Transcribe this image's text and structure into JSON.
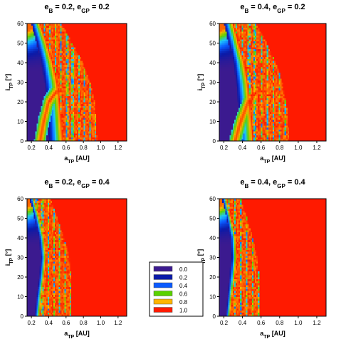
{
  "colors": {
    "red": "#ff1a00",
    "purple": "#3b1a8f",
    "levels": [
      "#3b1a8f",
      "#0a1aa8",
      "#0a5aff",
      "#1ec8ff",
      "#5ad200",
      "#ffb400",
      "#ff1a00"
    ]
  },
  "legend": {
    "position": "center",
    "labels": [
      "0.0",
      "0.2",
      "0.4",
      "0.6",
      "0.8",
      "1.0"
    ],
    "colors": [
      "#3b1a8f",
      "#0a1aa8",
      "#0a5aff",
      "#5ad200",
      "#ffb400",
      "#ff1a00"
    ]
  },
  "chart_data": [
    {
      "type": "heatmap",
      "title": {
        "main": "e",
        "s1": "B",
        "m1": " = 0.2, e",
        "s2": "GP",
        "m2": " = 0.2"
      },
      "xlabel": {
        "main": "a",
        "sub": "TP",
        "unit": " [AU]"
      },
      "ylabel": {
        "main": "i",
        "sub": "TP",
        "unit": " [°]"
      },
      "xlim": [
        0.15,
        1.3
      ],
      "ylim": [
        0,
        60
      ],
      "xticks": [
        "0.2",
        "0.4",
        "0.6",
        "0.8",
        "1.0",
        "1.2"
      ],
      "yticks": [
        "0",
        "10",
        "20",
        "30",
        "40",
        "50",
        "60"
      ],
      "stable_edge": [
        [
          0,
          0.4
        ],
        [
          10,
          0.39
        ],
        [
          20,
          0.38
        ],
        [
          30,
          0.35
        ],
        [
          40,
          0.31
        ],
        [
          50,
          0.26
        ],
        [
          60,
          0.2
        ]
      ],
      "unstable_edge": [
        [
          0,
          0.57
        ],
        [
          10,
          0.55
        ],
        [
          20,
          0.53
        ],
        [
          30,
          0.5
        ],
        [
          40,
          0.45
        ],
        [
          50,
          0.38
        ],
        [
          60,
          0.3
        ]
      ],
      "chaos_limit": [
        [
          0,
          0.96
        ],
        [
          10,
          0.95
        ],
        [
          20,
          0.93
        ],
        [
          30,
          0.88
        ],
        [
          40,
          0.8
        ],
        [
          50,
          0.67
        ],
        [
          60,
          0.55
        ]
      ],
      "arch": [
        [
          0.3,
          0
        ],
        [
          0.34,
          10
        ],
        [
          0.4,
          20
        ],
        [
          0.48,
          25
        ],
        [
          0.58,
          26
        ]
      ],
      "arch_width": 4
    },
    {
      "type": "heatmap",
      "title": {
        "main": "e",
        "s1": "B",
        "m1": " = 0.4, e",
        "s2": "GP",
        "m2": " = 0.2"
      },
      "xlabel": {
        "main": "a",
        "sub": "TP",
        "unit": " [AU]"
      },
      "ylabel": {
        "main": "i",
        "sub": "TP",
        "unit": " [°]"
      },
      "xlim": [
        0.15,
        1.3
      ],
      "ylim": [
        0,
        60
      ],
      "xticks": [
        "0.2",
        "0.4",
        "0.6",
        "0.8",
        "1.0",
        "1.2"
      ],
      "yticks": [
        "0",
        "10",
        "20",
        "30",
        "40",
        "50",
        "60"
      ],
      "stable_edge": [
        [
          0,
          0.36
        ],
        [
          10,
          0.36
        ],
        [
          20,
          0.35
        ],
        [
          30,
          0.33
        ],
        [
          40,
          0.3
        ],
        [
          50,
          0.25
        ],
        [
          60,
          0.2
        ]
      ],
      "unstable_edge": [
        [
          0,
          0.52
        ],
        [
          10,
          0.5
        ],
        [
          20,
          0.48
        ],
        [
          30,
          0.46
        ],
        [
          40,
          0.42
        ],
        [
          50,
          0.36
        ],
        [
          60,
          0.3
        ]
      ],
      "chaos_limit": [
        [
          0,
          0.9
        ],
        [
          10,
          0.89
        ],
        [
          20,
          0.87
        ],
        [
          30,
          0.83
        ],
        [
          40,
          0.76
        ],
        [
          50,
          0.66
        ],
        [
          60,
          0.55
        ]
      ],
      "arch": [
        [
          0.32,
          0
        ],
        [
          0.38,
          10
        ],
        [
          0.46,
          20
        ],
        [
          0.55,
          25
        ],
        [
          0.66,
          26
        ]
      ],
      "arch_width": 4
    },
    {
      "type": "heatmap",
      "title": {
        "main": "e",
        "s1": "B",
        "m1": " = 0.2, e",
        "s2": "GP",
        "m2": " = 0.4"
      },
      "xlabel": {
        "main": "a",
        "sub": "TP",
        "unit": " [AU]"
      },
      "ylabel": {
        "main": "i",
        "sub": "TP",
        "unit": " [°]"
      },
      "xlim": [
        0.15,
        1.3
      ],
      "ylim": [
        0,
        60
      ],
      "xticks": [
        "0.2",
        "0.4",
        "0.6",
        "0.8",
        "1.0",
        "1.2"
      ],
      "yticks": [
        "0",
        "10",
        "20",
        "30",
        "40",
        "50",
        "60"
      ],
      "stable_edge": [
        [
          0,
          0.24
        ],
        [
          10,
          0.26
        ],
        [
          20,
          0.29
        ],
        [
          30,
          0.31
        ],
        [
          40,
          0.29
        ],
        [
          50,
          0.24
        ],
        [
          60,
          0.18
        ]
      ],
      "unstable_edge": [
        [
          0,
          0.3
        ],
        [
          10,
          0.32
        ],
        [
          20,
          0.35
        ],
        [
          30,
          0.37
        ],
        [
          40,
          0.35
        ],
        [
          50,
          0.3
        ],
        [
          60,
          0.24
        ]
      ],
      "chaos_limit": [
        [
          0,
          0.66
        ],
        [
          10,
          0.66
        ],
        [
          20,
          0.66
        ],
        [
          30,
          0.64
        ],
        [
          40,
          0.58
        ],
        [
          50,
          0.5
        ],
        [
          60,
          0.42
        ]
      ],
      "arch": [],
      "arch_width": 0
    },
    {
      "type": "heatmap",
      "title": {
        "main": "e",
        "s1": "B",
        "m1": " = 0.4, e",
        "s2": "GP",
        "m2": " = 0.4"
      },
      "xlabel": {
        "main": "a",
        "sub": "TP",
        "unit": " [AU]"
      },
      "ylabel": {
        "main": "i",
        "sub": "TP",
        "unit": " [°]"
      },
      "xlim": [
        0.15,
        1.3
      ],
      "ylim": [
        0,
        60
      ],
      "xticks": [
        "0.2",
        "0.4",
        "0.6",
        "0.8",
        "1.0",
        "1.2"
      ],
      "yticks": [
        "0",
        "10",
        "20",
        "30",
        "40",
        "50",
        "60"
      ],
      "stable_edge": [
        [
          0,
          0.22
        ],
        [
          10,
          0.24
        ],
        [
          20,
          0.26
        ],
        [
          30,
          0.28
        ],
        [
          40,
          0.27
        ],
        [
          50,
          0.23
        ],
        [
          60,
          0.18
        ]
      ],
      "unstable_edge": [
        [
          0,
          0.27
        ],
        [
          10,
          0.29
        ],
        [
          20,
          0.32
        ],
        [
          30,
          0.34
        ],
        [
          40,
          0.33
        ],
        [
          50,
          0.28
        ],
        [
          60,
          0.23
        ]
      ],
      "chaos_limit": [
        [
          0,
          0.58
        ],
        [
          10,
          0.58
        ],
        [
          20,
          0.58
        ],
        [
          30,
          0.56
        ],
        [
          40,
          0.51
        ],
        [
          50,
          0.45
        ],
        [
          60,
          0.38
        ]
      ],
      "arch": [],
      "arch_width": 0
    }
  ]
}
